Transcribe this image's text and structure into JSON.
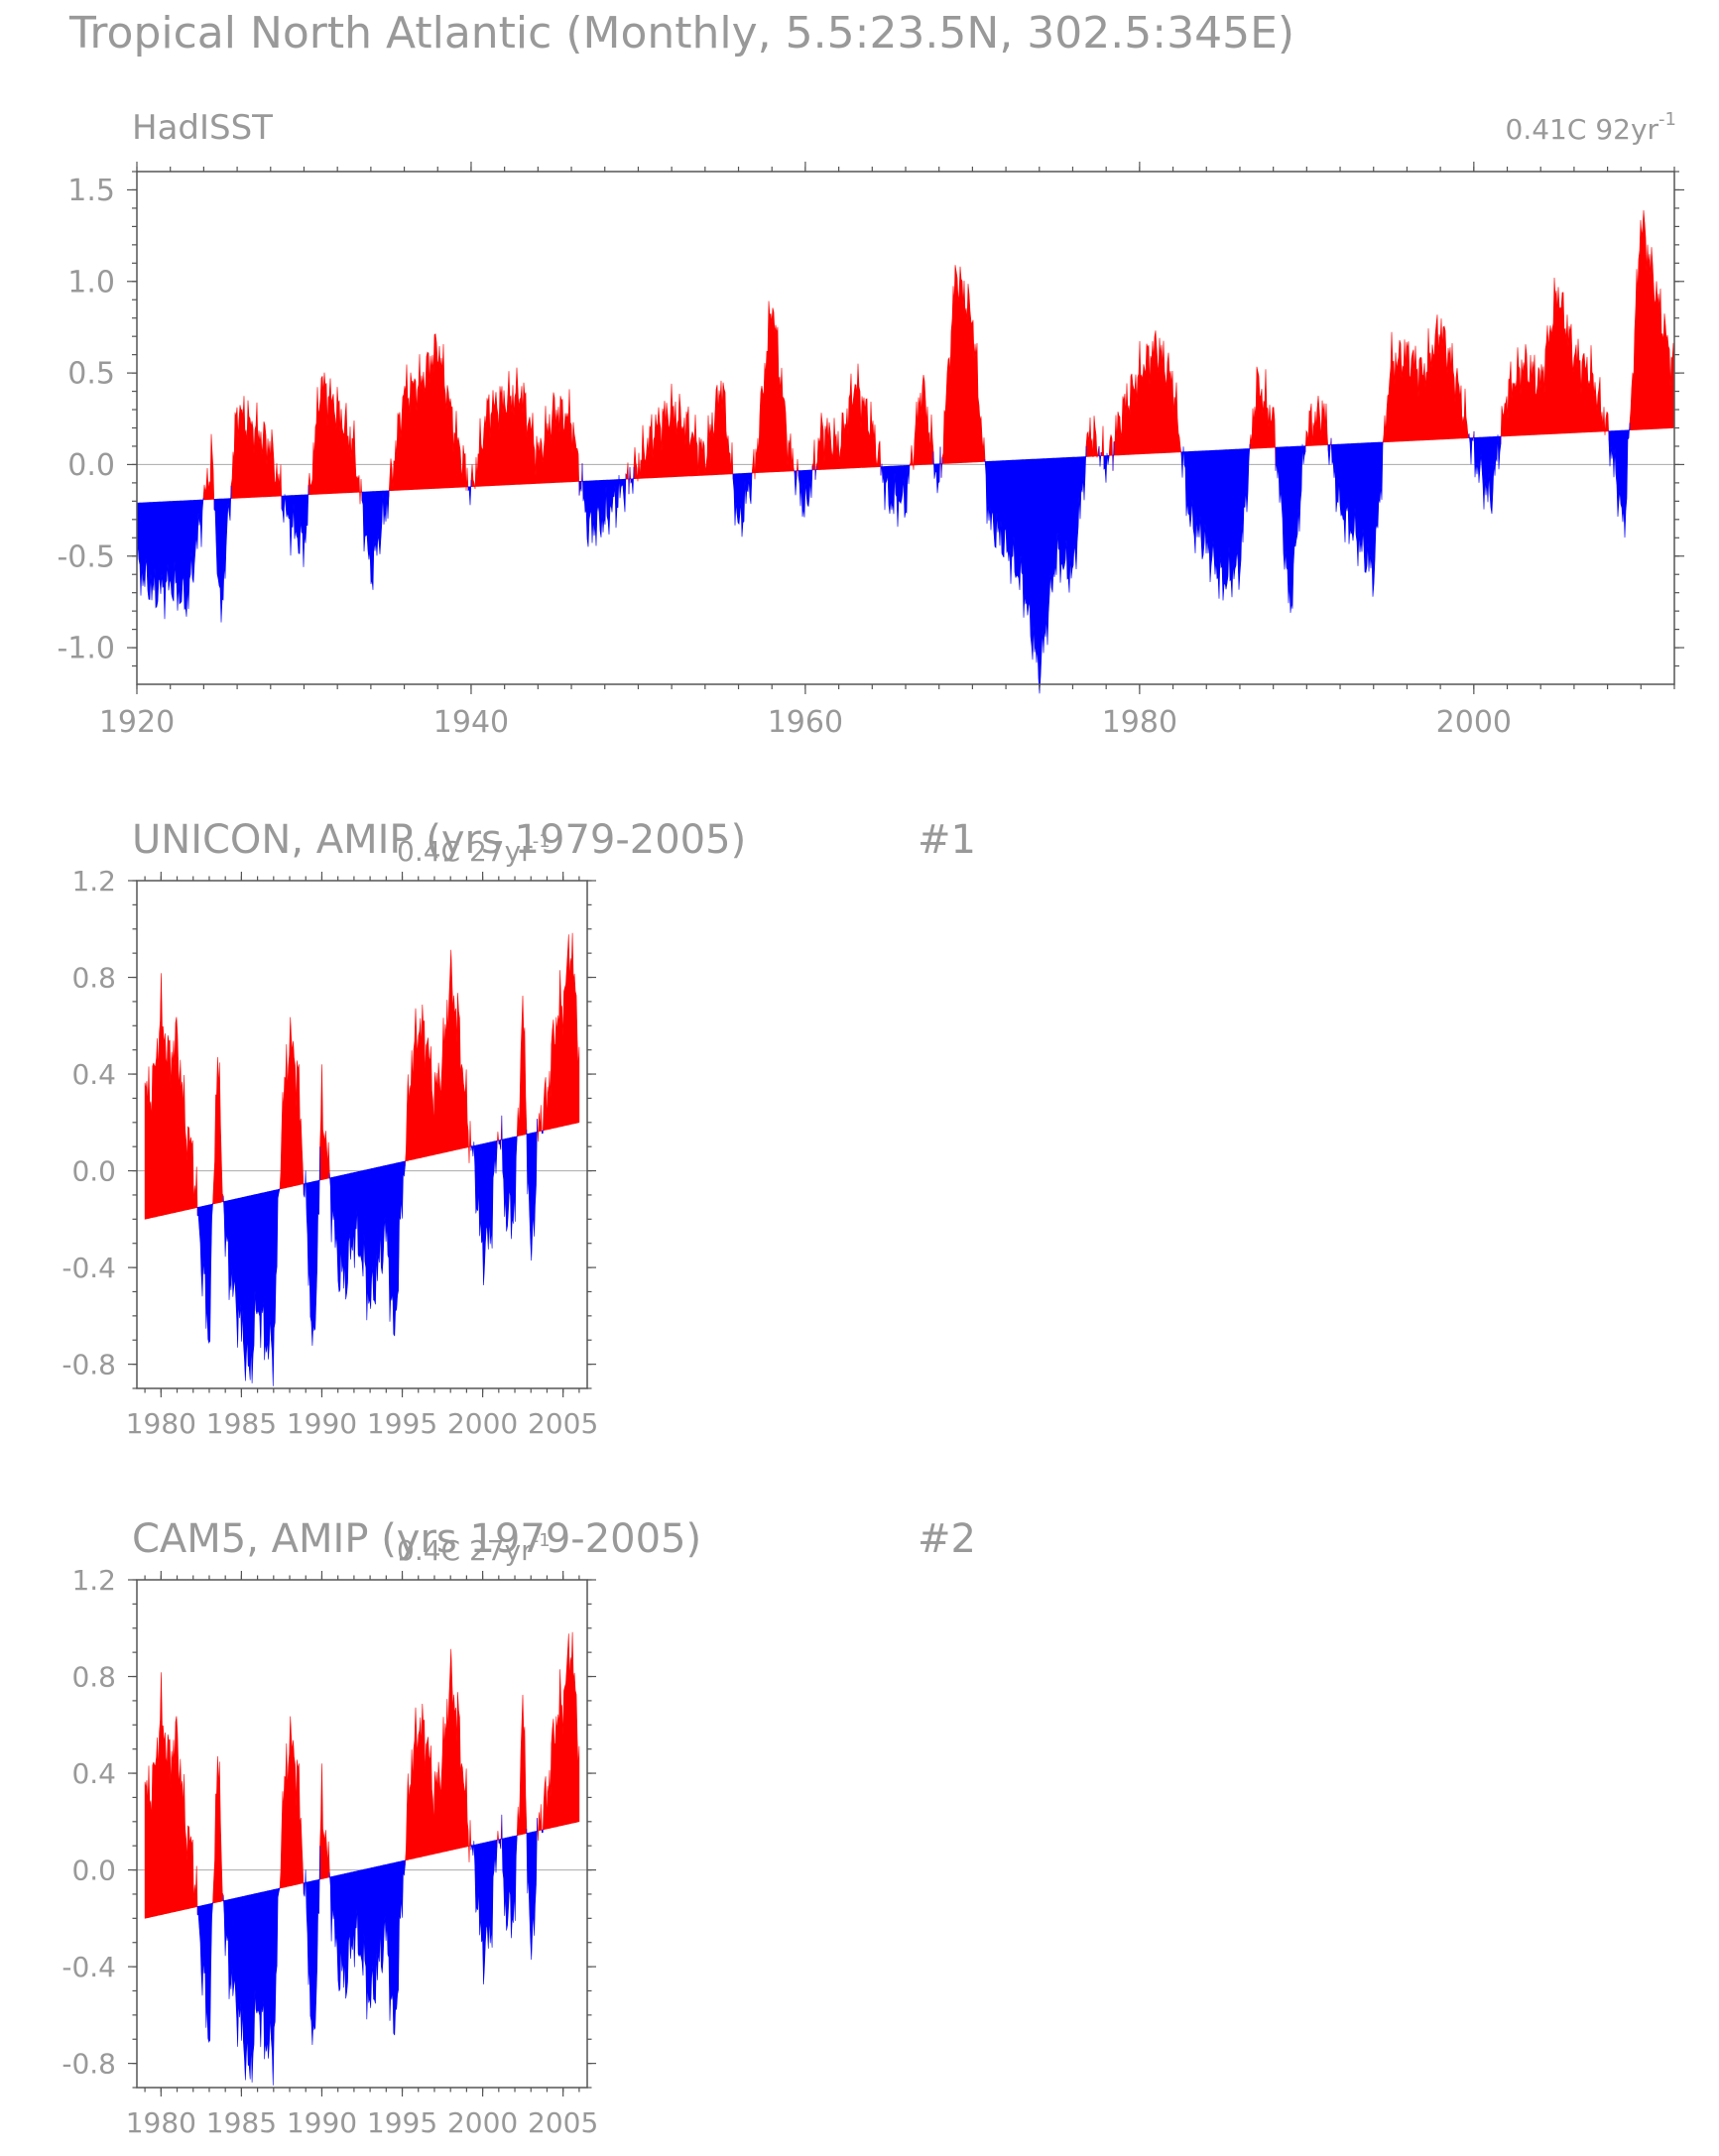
{
  "page_title": "Tropical North Atlantic (Monthly, 5.5:23.5N, 302.5:345E)",
  "colors": {
    "positive": "#ff0000",
    "negative": "#0000ff",
    "text": "#999999",
    "frame": "#555555"
  },
  "chart_data": [
    {
      "type": "area",
      "title": "HadISST",
      "trend_label": "0.41C 92yr",
      "trend_label_sup": "-1",
      "panel_number": "",
      "xlim": [
        1920,
        2012
      ],
      "ylim": [
        -1.2,
        1.6
      ],
      "xticks": [
        1920,
        1940,
        1960,
        1980,
        2000
      ],
      "xtick_labels": [
        "1920",
        "1940",
        "1960",
        "1980",
        "2000"
      ],
      "yticks": [
        -1.0,
        -0.5,
        0.0,
        0.5,
        1.0,
        1.5
      ],
      "ytick_labels": [
        "-1.0",
        "-0.5",
        "0.0",
        "0.5",
        "1.0",
        "1.5"
      ],
      "reference": {
        "start": [
          1920,
          -0.21
        ],
        "end": [
          2012,
          0.2
        ]
      },
      "series_anomaly": {
        "x": [
          1920.0,
          1921.0,
          1922.0,
          1923.0,
          1924.0,
          1924.5,
          1925.0,
          1926.0,
          1927.0,
          1928.0,
          1929.0,
          1930.0,
          1931.0,
          1932.0,
          1933.0,
          1934.0,
          1935.0,
          1936.0,
          1937.0,
          1938.0,
          1939.0,
          1940.0,
          1941.0,
          1942.0,
          1943.0,
          1944.0,
          1945.0,
          1946.0,
          1947.0,
          1948.0,
          1949.0,
          1950.0,
          1951.0,
          1952.0,
          1953.0,
          1954.0,
          1955.0,
          1956.0,
          1957.0,
          1958.0,
          1959.0,
          1960.0,
          1961.0,
          1962.0,
          1963.0,
          1964.0,
          1965.0,
          1966.0,
          1967.0,
          1968.0,
          1969.0,
          1970.0,
          1971.0,
          1972.0,
          1973.0,
          1974.0,
          1975.0,
          1976.0,
          1977.0,
          1978.0,
          1979.0,
          1980.0,
          1981.0,
          1982.0,
          1983.0,
          1984.0,
          1985.0,
          1986.0,
          1987.0,
          1988.0,
          1989.0,
          1990.0,
          1991.0,
          1992.0,
          1993.0,
          1994.0,
          1995.0,
          1996.0,
          1997.0,
          1998.0,
          1999.0,
          2000.0,
          2001.0,
          2002.0,
          2003.0,
          2004.0,
          2005.0,
          2006.0,
          2007.0,
          2008.0,
          2009.0,
          2010.0,
          2011.0,
          2012.0
        ],
        "y": [
          -0.55,
          -0.7,
          -0.65,
          -0.75,
          -0.2,
          0.05,
          -0.85,
          0.3,
          0.2,
          0.1,
          -0.3,
          -0.45,
          0.45,
          0.3,
          0.1,
          -0.6,
          -0.2,
          0.4,
          0.45,
          0.65,
          0.2,
          -0.15,
          0.3,
          0.35,
          0.4,
          0.05,
          0.3,
          0.25,
          -0.35,
          -0.3,
          -0.15,
          0.0,
          0.2,
          0.3,
          0.2,
          0.05,
          0.45,
          -0.35,
          0.0,
          0.9,
          0.1,
          -0.25,
          0.2,
          0.1,
          0.45,
          0.2,
          -0.2,
          -0.2,
          0.45,
          -0.15,
          1.05,
          0.8,
          -0.3,
          -0.45,
          -0.65,
          -1.15,
          -0.5,
          -0.6,
          0.2,
          0.0,
          0.3,
          0.5,
          0.65,
          0.45,
          -0.3,
          -0.45,
          -0.65,
          -0.55,
          0.45,
          0.25,
          -0.8,
          0.2,
          0.3,
          -0.25,
          -0.4,
          -0.6,
          0.55,
          0.6,
          0.5,
          0.75,
          0.45,
          0.05,
          -0.2,
          0.4,
          0.55,
          0.45,
          0.95,
          0.6,
          0.5,
          0.2,
          -0.35,
          1.35,
          0.9,
          0.5
        ]
      }
    },
    {
      "type": "area",
      "title": "UNICON, AMIP (yrs 1979-2005)",
      "trend_label": "0.4C 27yr",
      "trend_label_sup": "-1",
      "panel_number": "#1",
      "xlim": [
        1978.5,
        2006.5
      ],
      "ylim": [
        -0.9,
        1.2
      ],
      "xticks": [
        1980,
        1985,
        1990,
        1995,
        2000,
        2005
      ],
      "xtick_labels": [
        "1980",
        "1985",
        "1990",
        "1995",
        "2000",
        "2005"
      ],
      "yticks": [
        -0.8,
        -0.4,
        0.0,
        0.4,
        0.8,
        1.2
      ],
      "ytick_labels": [
        "-0.8",
        "-0.4",
        "0.0",
        "0.4",
        "0.8",
        "1.2"
      ],
      "reference": {
        "start": [
          1979,
          -0.2
        ],
        "end": [
          2006,
          0.2
        ]
      },
      "series_anomaly": {
        "x": [
          1979.0,
          1979.5,
          1980.0,
          1980.5,
          1981.0,
          1981.5,
          1982.0,
          1982.5,
          1983.0,
          1983.5,
          1984.0,
          1984.5,
          1985.0,
          1985.5,
          1986.0,
          1986.5,
          1987.0,
          1987.5,
          1988.0,
          1988.5,
          1989.0,
          1989.5,
          1990.0,
          1990.5,
          1991.0,
          1991.5,
          1992.0,
          1992.5,
          1993.0,
          1993.5,
          1994.0,
          1994.5,
          1995.0,
          1995.5,
          1996.0,
          1996.5,
          1997.0,
          1997.5,
          1998.0,
          1998.5,
          1999.0,
          1999.5,
          2000.0,
          2000.5,
          2001.0,
          2001.5,
          2002.0,
          2002.5,
          2003.0,
          2003.5,
          2004.0,
          2004.5,
          2005.0,
          2005.5,
          2006.0
        ],
        "y": [
          0.3,
          0.35,
          0.65,
          0.45,
          0.55,
          0.2,
          0.05,
          -0.35,
          -0.7,
          0.5,
          -0.3,
          -0.5,
          -0.65,
          -0.85,
          -0.55,
          -0.7,
          -0.75,
          0.2,
          0.55,
          0.4,
          -0.15,
          -0.8,
          0.3,
          -0.05,
          -0.4,
          -0.45,
          -0.25,
          -0.35,
          -0.55,
          -0.4,
          -0.25,
          -0.7,
          -0.1,
          0.4,
          0.6,
          0.55,
          0.3,
          0.45,
          0.8,
          0.6,
          0.25,
          0.0,
          -0.35,
          -0.25,
          0.2,
          -0.2,
          -0.15,
          0.7,
          -0.4,
          0.2,
          0.3,
          0.6,
          0.7,
          0.95,
          0.5
        ]
      }
    },
    {
      "type": "area",
      "title": "CAM5, AMIP (yrs 1979-2005)",
      "trend_label": "0.4C 27yr",
      "trend_label_sup": "-1",
      "panel_number": "#2",
      "xlim": [
        1978.5,
        2006.5
      ],
      "ylim": [
        -0.9,
        1.2
      ],
      "xticks": [
        1980,
        1985,
        1990,
        1995,
        2000,
        2005
      ],
      "xtick_labels": [
        "1980",
        "1985",
        "1990",
        "1995",
        "2000",
        "2005"
      ],
      "yticks": [
        -0.8,
        -0.4,
        0.0,
        0.4,
        0.8,
        1.2
      ],
      "ytick_labels": [
        "-0.8",
        "-0.4",
        "0.0",
        "0.4",
        "0.8",
        "1.2"
      ],
      "reference": {
        "start": [
          1979,
          -0.2
        ],
        "end": [
          2006,
          0.2
        ]
      },
      "series_anomaly": {
        "x": [
          1979.0,
          1979.5,
          1980.0,
          1980.5,
          1981.0,
          1981.5,
          1982.0,
          1982.5,
          1983.0,
          1983.5,
          1984.0,
          1984.5,
          1985.0,
          1985.5,
          1986.0,
          1986.5,
          1987.0,
          1987.5,
          1988.0,
          1988.5,
          1989.0,
          1989.5,
          1990.0,
          1990.5,
          1991.0,
          1991.5,
          1992.0,
          1992.5,
          1993.0,
          1993.5,
          1994.0,
          1994.5,
          1995.0,
          1995.5,
          1996.0,
          1996.5,
          1997.0,
          1997.5,
          1998.0,
          1998.5,
          1999.0,
          1999.5,
          2000.0,
          2000.5,
          2001.0,
          2001.5,
          2002.0,
          2002.5,
          2003.0,
          2003.5,
          2004.0,
          2004.5,
          2005.0,
          2005.5,
          2006.0
        ],
        "y": [
          0.3,
          0.35,
          0.65,
          0.45,
          0.55,
          0.2,
          0.05,
          -0.35,
          -0.7,
          0.5,
          -0.3,
          -0.5,
          -0.65,
          -0.85,
          -0.55,
          -0.7,
          -0.75,
          0.2,
          0.55,
          0.4,
          -0.15,
          -0.8,
          0.3,
          -0.05,
          -0.4,
          -0.45,
          -0.25,
          -0.35,
          -0.55,
          -0.4,
          -0.25,
          -0.7,
          -0.1,
          0.4,
          0.6,
          0.55,
          0.3,
          0.45,
          0.8,
          0.6,
          0.25,
          0.0,
          -0.35,
          -0.25,
          0.2,
          -0.2,
          -0.15,
          0.7,
          -0.4,
          0.2,
          0.3,
          0.6,
          0.7,
          0.95,
          0.5
        ]
      }
    }
  ]
}
